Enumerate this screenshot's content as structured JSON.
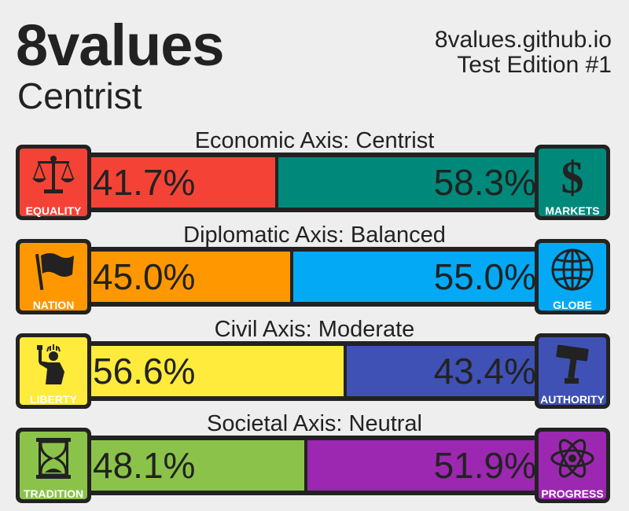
{
  "header": {
    "title": "8values",
    "ideology": "Centrist",
    "site": "8values.github.io",
    "edition": "Test Edition #1"
  },
  "axes": [
    {
      "label": "Economic Axis: Centrist",
      "left": {
        "caption": "EQUALITY",
        "icon": "scales-icon",
        "color": "#f44336",
        "value": 41.7,
        "display": "41.7%"
      },
      "right": {
        "caption": "MARKETS",
        "icon": "dollar-icon",
        "color": "#00897b",
        "value": 58.3,
        "display": "58.3%"
      }
    },
    {
      "label": "Diplomatic Axis: Balanced",
      "left": {
        "caption": "NATION",
        "icon": "flag-icon",
        "color": "#ff9800",
        "value": 45.0,
        "display": "45.0%"
      },
      "right": {
        "caption": "GLOBE",
        "icon": "globe-icon",
        "color": "#03a9f4",
        "value": 55.0,
        "display": "55.0%"
      }
    },
    {
      "label": "Civil Axis: Moderate",
      "left": {
        "caption": "LIBERTY",
        "icon": "statue-of-liberty-icon",
        "color": "#ffeb3b",
        "value": 56.6,
        "display": "56.6%"
      },
      "right": {
        "caption": "AUTHORITY",
        "icon": "gavel-icon",
        "color": "#3f51b5",
        "value": 43.4,
        "display": "43.4%"
      }
    },
    {
      "label": "Societal Axis: Neutral",
      "left": {
        "caption": "TRADITION",
        "icon": "hourglass-icon",
        "color": "#8bc34a",
        "value": 48.1,
        "display": "48.1%"
      },
      "right": {
        "caption": "PROGRESS",
        "icon": "atom-icon",
        "color": "#9c27b0",
        "value": 51.9,
        "display": "51.9%"
      }
    }
  ]
}
